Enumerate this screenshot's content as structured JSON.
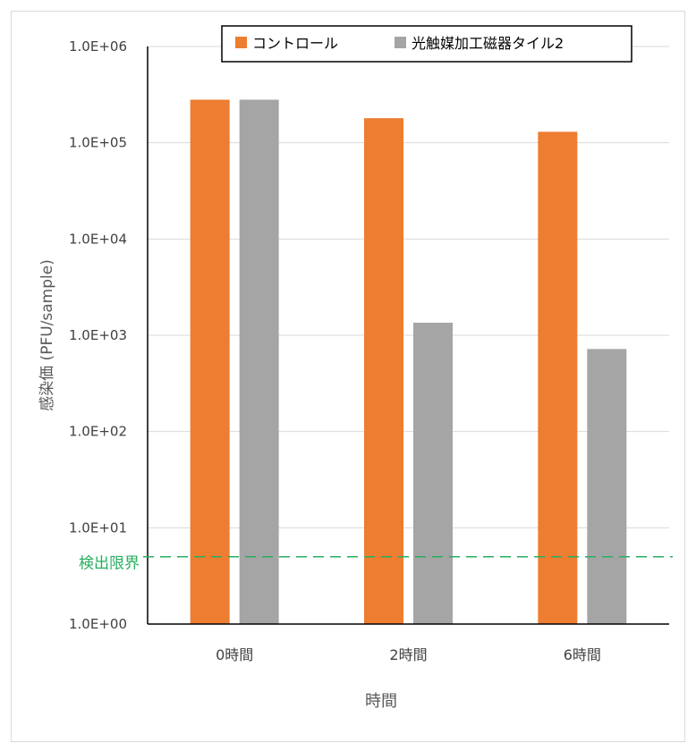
{
  "chart_data": {
    "type": "bar",
    "categories": [
      "0時間",
      "2時間",
      "6時間"
    ],
    "series": [
      {
        "name": "コントロール",
        "color": "#ed7d31",
        "values": [
          280000,
          180000,
          130000
        ]
      },
      {
        "name": "光触媒加工磁器タイル2",
        "color": "#a5a5a5",
        "values": [
          280000,
          1350,
          720
        ]
      }
    ],
    "xlabel": "時間",
    "ylabel": "感染価 (PFU/sample)",
    "yscale": "log",
    "ylim": [
      1,
      1000000
    ],
    "yticks": [
      {
        "value": 1,
        "label": "1.0E+00"
      },
      {
        "value": 10,
        "label": "1.0E+01"
      },
      {
        "value": 100,
        "label": "1.0E+02"
      },
      {
        "value": 1000,
        "label": "1.0E+03"
      },
      {
        "value": 10000,
        "label": "1.0E+04"
      },
      {
        "value": 100000,
        "label": "1.0E+05"
      },
      {
        "value": 1000000,
        "label": "1.0E+06"
      }
    ],
    "grid": true,
    "legend_position": "top-right",
    "reference_line": {
      "label": "検出限界",
      "value": 5,
      "color": "#27ae60",
      "style": "dashed"
    }
  }
}
